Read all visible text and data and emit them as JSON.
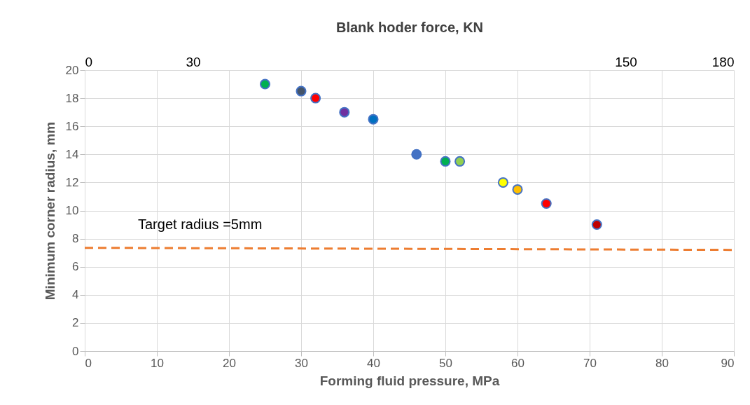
{
  "chart_data": {
    "type": "scatter",
    "x2label": "Blank hoder force, KN",
    "xlabel": "Forming fluid pressure, MPa",
    "ylabel": "Minimum corner radius, mm",
    "xlim": [
      0,
      90
    ],
    "xticks": [
      0,
      10,
      20,
      30,
      40,
      50,
      60,
      70,
      80,
      90
    ],
    "x2lim": [
      0,
      180
    ],
    "x2ticks": [
      0,
      30,
      150,
      180
    ],
    "ylim": [
      0,
      20
    ],
    "yticks": [
      0,
      2,
      4,
      6,
      8,
      10,
      12,
      14,
      16,
      18,
      20
    ],
    "grid": true,
    "annotations": [
      "Target radius =5mm"
    ],
    "series": [
      {
        "marker": "circle",
        "x": [
          25,
          30,
          32,
          36,
          40,
          46,
          50,
          52,
          58,
          60,
          64,
          71
        ],
        "values": [
          19,
          18.5,
          18,
          17,
          16.5,
          14,
          13.5,
          13.5,
          12,
          11.5,
          10.5,
          9
        ],
        "colors": [
          "#00b050",
          "#44546a",
          "#ff0000",
          "#7030a0",
          "#0070c0",
          "#4472c4",
          "#00b050",
          "#92d050",
          "#ffff00",
          "#ffc000",
          "#ff0000",
          "#c00000"
        ]
      },
      {
        "type": "line",
        "x": [
          0,
          90
        ],
        "values": [
          7.35,
          7.2
        ],
        "color": "#ed7d31",
        "line_style": "dashed"
      }
    ]
  }
}
